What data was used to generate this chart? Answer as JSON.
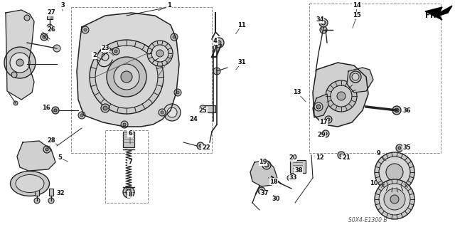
{
  "bg_color": "#ffffff",
  "fig_width": 6.4,
  "fig_height": 3.19,
  "dpi": 100,
  "diagram_code": "S0X4-E1300 B",
  "lc": "#222222",
  "lc_light": "#666666",
  "fill_light": "#e0e0e0",
  "fill_mid": "#c8c8c8",
  "fill_dark": "#aaaaaa",
  "labels": [
    [
      1,
      238,
      8,
      220,
      16
    ],
    [
      2,
      133,
      78,
      148,
      86
    ],
    [
      3,
      88,
      8,
      88,
      18
    ],
    [
      4,
      303,
      58,
      303,
      75
    ],
    [
      5,
      84,
      222,
      98,
      228
    ],
    [
      6,
      183,
      188,
      183,
      205
    ],
    [
      7,
      183,
      228,
      183,
      238
    ],
    [
      8,
      183,
      273,
      183,
      268
    ],
    [
      9,
      533,
      215,
      545,
      228
    ],
    [
      10,
      526,
      258,
      543,
      260
    ],
    [
      11,
      340,
      35,
      330,
      50
    ],
    [
      12,
      450,
      222,
      440,
      218
    ],
    [
      13,
      418,
      130,
      432,
      145
    ],
    [
      14,
      502,
      8,
      500,
      30
    ],
    [
      15,
      502,
      22,
      495,
      42
    ],
    [
      16,
      65,
      152,
      78,
      158
    ],
    [
      17,
      455,
      172,
      462,
      168
    ],
    [
      18,
      385,
      255,
      375,
      248
    ],
    [
      19,
      370,
      228,
      378,
      235
    ],
    [
      20,
      412,
      222,
      420,
      230
    ],
    [
      21,
      487,
      222,
      480,
      218
    ],
    [
      22,
      290,
      208,
      282,
      205
    ],
    [
      23,
      148,
      68,
      162,
      80
    ],
    [
      24,
      272,
      168,
      265,
      172
    ],
    [
      25,
      285,
      155,
      283,
      160
    ],
    [
      26,
      72,
      42,
      62,
      52
    ],
    [
      27,
      72,
      18,
      72,
      30
    ],
    [
      28,
      72,
      198,
      83,
      205
    ],
    [
      29,
      452,
      190,
      458,
      185
    ],
    [
      30,
      388,
      280,
      383,
      272
    ],
    [
      31,
      340,
      88,
      330,
      100
    ],
    [
      32,
      85,
      272,
      86,
      268
    ],
    [
      33,
      412,
      250,
      408,
      248
    ],
    [
      34,
      450,
      28,
      453,
      45
    ],
    [
      35,
      572,
      208,
      566,
      208
    ],
    [
      36,
      572,
      155,
      563,
      158
    ],
    [
      37,
      372,
      272,
      374,
      265
    ],
    [
      38,
      420,
      240,
      420,
      238
    ]
  ]
}
